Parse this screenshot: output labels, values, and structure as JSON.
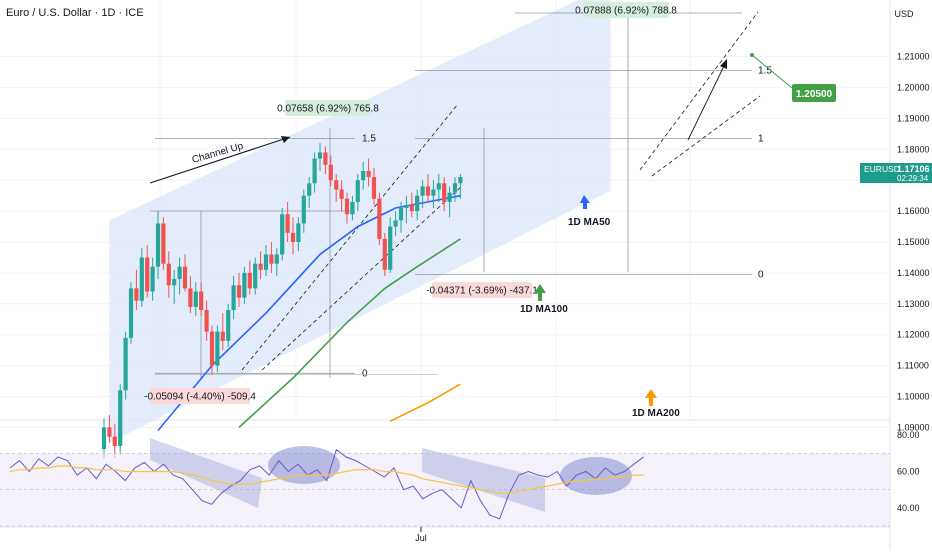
{
  "header": {
    "title": "Euro / U.S. Dollar · 1D · ICE",
    "currency": "USD"
  },
  "price_tag": {
    "symbol": "EURUSD",
    "price": "1.17106",
    "countdown": "02:29:34"
  },
  "colors": {
    "up": "#26a69a",
    "down": "#ef5350",
    "ma50": "#2962ff",
    "ma100": "#43a047",
    "ma200": "#ff9800",
    "channel_fill": "#dbe6fb",
    "rsi": "#6a5acd",
    "rsi_ma": "#f5c542"
  },
  "chart_data": [
    {
      "type": "candlestick",
      "title": "Euro / U.S. Dollar · 1D · ICE",
      "ylabel": "USD",
      "ylim": [
        1.0825,
        1.2225
      ],
      "y_ticks": [
        "1.21000",
        "1.20000",
        "1.19000",
        "1.18000",
        "1.17000",
        "1.16000",
        "1.15000",
        "1.14000",
        "1.13000",
        "1.12000",
        "1.11000",
        "1.10000",
        "1.09000"
      ],
      "x_ticks": [
        "Jul"
      ],
      "grid": true,
      "candles": [
        [
          1.083,
          1.093,
          1.08,
          1.09
        ],
        [
          1.09,
          1.094,
          1.085,
          1.087
        ],
        [
          1.087,
          1.091,
          1.08,
          1.084
        ],
        [
          1.084,
          1.104,
          1.081,
          1.102
        ],
        [
          1.102,
          1.121,
          1.099,
          1.119
        ],
        [
          1.119,
          1.137,
          1.117,
          1.135
        ],
        [
          1.135,
          1.141,
          1.128,
          1.131
        ],
        [
          1.131,
          1.148,
          1.129,
          1.145
        ],
        [
          1.145,
          1.149,
          1.132,
          1.134
        ],
        [
          1.134,
          1.145,
          1.131,
          1.142
        ],
        [
          1.142,
          1.16,
          1.138,
          1.156
        ],
        [
          1.156,
          1.158,
          1.141,
          1.143
        ],
        [
          1.143,
          1.147,
          1.132,
          1.136
        ],
        [
          1.136,
          1.141,
          1.13,
          1.138
        ],
        [
          1.138,
          1.145,
          1.133,
          1.142
        ],
        [
          1.142,
          1.146,
          1.134,
          1.135
        ],
        [
          1.135,
          1.139,
          1.127,
          1.129
        ],
        [
          1.129,
          1.137,
          1.126,
          1.134
        ],
        [
          1.134,
          1.137,
          1.126,
          1.128
        ],
        [
          1.128,
          1.131,
          1.118,
          1.121
        ],
        [
          1.121,
          1.123,
          1.107,
          1.11
        ],
        [
          1.11,
          1.123,
          1.108,
          1.121
        ],
        [
          1.121,
          1.127,
          1.115,
          1.118
        ],
        [
          1.118,
          1.13,
          1.116,
          1.128
        ],
        [
          1.128,
          1.139,
          1.125,
          1.136
        ],
        [
          1.136,
          1.14,
          1.129,
          1.132
        ],
        [
          1.132,
          1.142,
          1.13,
          1.14
        ],
        [
          1.14,
          1.144,
          1.133,
          1.135
        ],
        [
          1.135,
          1.145,
          1.133,
          1.143
        ],
        [
          1.143,
          1.147,
          1.138,
          1.141
        ],
        [
          1.141,
          1.149,
          1.139,
          1.146
        ],
        [
          1.146,
          1.15,
          1.14,
          1.143
        ],
        [
          1.143,
          1.148,
          1.139,
          1.146
        ],
        [
          1.146,
          1.161,
          1.144,
          1.159
        ],
        [
          1.159,
          1.163,
          1.15,
          1.153
        ],
        [
          1.153,
          1.158,
          1.146,
          1.15
        ],
        [
          1.15,
          1.158,
          1.147,
          1.156
        ],
        [
          1.156,
          1.167,
          1.153,
          1.165
        ],
        [
          1.165,
          1.171,
          1.161,
          1.169
        ],
        [
          1.169,
          1.179,
          1.166,
          1.177
        ],
        [
          1.177,
          1.182,
          1.173,
          1.179
        ],
        [
          1.179,
          1.181,
          1.172,
          1.175
        ],
        [
          1.175,
          1.178,
          1.168,
          1.17
        ],
        [
          1.17,
          1.172,
          1.163,
          1.167
        ],
        [
          1.167,
          1.17,
          1.16,
          1.164
        ],
        [
          1.164,
          1.166,
          1.156,
          1.159
        ],
        [
          1.159,
          1.165,
          1.157,
          1.163
        ],
        [
          1.163,
          1.172,
          1.16,
          1.17
        ],
        [
          1.17,
          1.176,
          1.167,
          1.173
        ],
        [
          1.173,
          1.177,
          1.168,
          1.171
        ],
        [
          1.171,
          1.174,
          1.162,
          1.164
        ],
        [
          1.164,
          1.166,
          1.149,
          1.151
        ],
        [
          1.151,
          1.153,
          1.139,
          1.141
        ],
        [
          1.141,
          1.158,
          1.14,
          1.155
        ],
        [
          1.155,
          1.16,
          1.152,
          1.157
        ],
        [
          1.157,
          1.163,
          1.153,
          1.161
        ],
        [
          1.161,
          1.165,
          1.156,
          1.162
        ],
        [
          1.162,
          1.166,
          1.158,
          1.16
        ],
        [
          1.16,
          1.167,
          1.157,
          1.165
        ],
        [
          1.165,
          1.17,
          1.161,
          1.168
        ],
        [
          1.168,
          1.172,
          1.163,
          1.165
        ],
        [
          1.165,
          1.17,
          1.161,
          1.167
        ],
        [
          1.167,
          1.172,
          1.163,
          1.169
        ],
        [
          1.169,
          1.171,
          1.16,
          1.163
        ],
        [
          1.163,
          1.168,
          1.158,
          1.166
        ],
        [
          1.166,
          1.171,
          1.163,
          1.169
        ],
        [
          1.169,
          1.172,
          1.164,
          1.171
        ]
      ],
      "moving_averages": [
        {
          "name": "1D MA50",
          "color": "#2962ff",
          "points": [
            [
              10,
              1.089
            ],
            [
              20,
              1.11
            ],
            [
              30,
              1.127
            ],
            [
              40,
              1.146
            ],
            [
              47,
              1.155
            ],
            [
              54,
              1.161
            ],
            [
              60,
              1.163
            ],
            [
              66,
              1.165
            ]
          ]
        },
        {
          "name": "1D MA100",
          "color": "#43a047",
          "points": [
            [
              25,
              1.09
            ],
            [
              35,
              1.106
            ],
            [
              45,
              1.124
            ],
            [
              52,
              1.135
            ],
            [
              58,
              1.142
            ],
            [
              66,
              1.151
            ]
          ]
        },
        {
          "name": "1D MA200",
          "color": "#ff9800",
          "points": [
            [
              53,
              1.092
            ],
            [
              60,
              1.098
            ],
            [
              66,
              1.104
            ]
          ]
        }
      ],
      "channel": {
        "lower": [
          [
            1,
            1.085
          ],
          [
            79,
            1.165
          ]
        ],
        "upper": [
          [
            1,
            1.157
          ],
          [
            79,
            1.23
          ]
        ]
      },
      "fib_levels": [
        {
          "label": "1.5",
          "value": 1.1835
        },
        {
          "label": "0",
          "value": 1.1075
        },
        {
          "label": "1.5",
          "value": 1.2055
        },
        {
          "label": "1",
          "value": 1.1835
        },
        {
          "label": "0",
          "value": 1.1395
        }
      ],
      "annotations": [
        {
          "text": "Channel Up"
        },
        {
          "text": "0.07658 (6.92%) 765.8",
          "kind": "gain"
        },
        {
          "text": "-0.05094 (-4.40%) -509.4",
          "kind": "loss"
        },
        {
          "text": "-0.04371 (-3.69%) -437.1",
          "kind": "loss"
        },
        {
          "text": "0.07888 (6.92%) 788.8",
          "kind": "gain"
        },
        {
          "text": "1.20500",
          "kind": "target",
          "value": 1.205
        },
        {
          "text": "1D MA50"
        },
        {
          "text": "1D MA100"
        },
        {
          "text": "1D MA200"
        }
      ]
    },
    {
      "type": "line",
      "title": "",
      "ylim": [
        30,
        85
      ],
      "y_ticks": [
        "80.00",
        "60.00",
        "40.00"
      ],
      "overbought": 70,
      "oversold": 30,
      "series": [
        {
          "color": "#6a5acd",
          "values": [
            62,
            66,
            60,
            67,
            63,
            68,
            66,
            58,
            62,
            56,
            64,
            60,
            55,
            62,
            65,
            60,
            64,
            58,
            56,
            50,
            44,
            42,
            48,
            52,
            55,
            61,
            63,
            58,
            66,
            60,
            64,
            58,
            61,
            55,
            72,
            68,
            66,
            63,
            60,
            57,
            62,
            50,
            52,
            45,
            48,
            50,
            45,
            40,
            55,
            44,
            36,
            34,
            48,
            58,
            60,
            58,
            57,
            60,
            52,
            58,
            60,
            56,
            62,
            58,
            60,
            64,
            68
          ]
        },
        {
          "color": "#f5c542",
          "values": [
            60,
            61,
            61,
            62,
            62,
            63,
            63,
            62,
            62,
            61,
            61,
            61,
            60,
            60,
            60,
            60,
            60,
            60,
            59,
            58,
            57,
            55,
            54,
            53,
            53,
            53,
            54,
            55,
            56,
            57,
            58,
            58,
            58,
            58,
            59,
            60,
            61,
            61,
            61,
            60,
            60,
            59,
            58,
            56,
            55,
            54,
            53,
            52,
            51,
            50,
            49,
            48,
            48,
            49,
            50,
            51,
            52,
            53,
            54,
            55,
            55,
            56,
            56,
            57,
            57,
            58,
            58
          ]
        }
      ],
      "highlight_ellipses": 2
    }
  ]
}
